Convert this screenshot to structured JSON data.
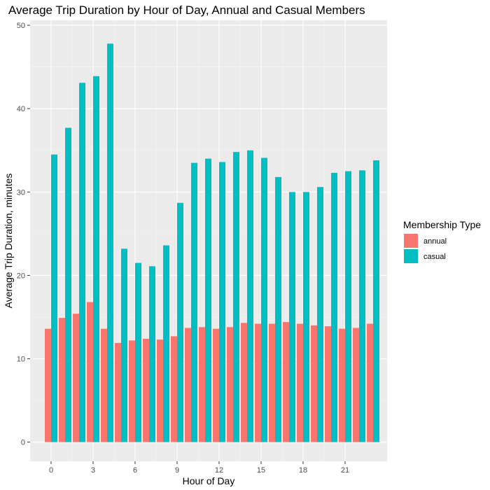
{
  "chart_data": {
    "type": "bar",
    "title": "Average Trip Duration by Hour of Day, Annual and Casual Members",
    "xlabel": "Hour of Day",
    "ylabel": "Average Trip Duration, minutes",
    "x": [
      0,
      1,
      2,
      3,
      4,
      5,
      6,
      7,
      8,
      9,
      10,
      11,
      12,
      13,
      14,
      15,
      16,
      17,
      18,
      19,
      20,
      21,
      22,
      23
    ],
    "x_ticks": [
      0,
      3,
      6,
      9,
      12,
      15,
      18,
      21
    ],
    "xlim": [
      -1.5,
      24
    ],
    "ylim": [
      -2.3,
      50.6
    ],
    "y_ticks": [
      0,
      10,
      20,
      30,
      40,
      50
    ],
    "grid": true,
    "legend_title": "Membership Type",
    "legend_position": "right",
    "series": [
      {
        "name": "annual",
        "color": "#F8766D",
        "values": [
          13.6,
          14.9,
          15.4,
          16.8,
          13.6,
          11.9,
          12.2,
          12.4,
          12.3,
          12.7,
          13.7,
          13.8,
          13.6,
          13.8,
          14.3,
          14.2,
          14.2,
          14.4,
          14.2,
          14.0,
          13.9,
          13.6,
          13.7,
          14.2
        ]
      },
      {
        "name": "casual",
        "color": "#00BFC4",
        "values": [
          34.5,
          37.7,
          43.1,
          43.9,
          47.8,
          23.2,
          21.5,
          21.1,
          23.6,
          28.7,
          33.5,
          34.0,
          33.6,
          34.8,
          35.0,
          34.1,
          31.8,
          30.0,
          30.0,
          30.6,
          32.3,
          32.5,
          32.6,
          33.8
        ]
      }
    ]
  }
}
